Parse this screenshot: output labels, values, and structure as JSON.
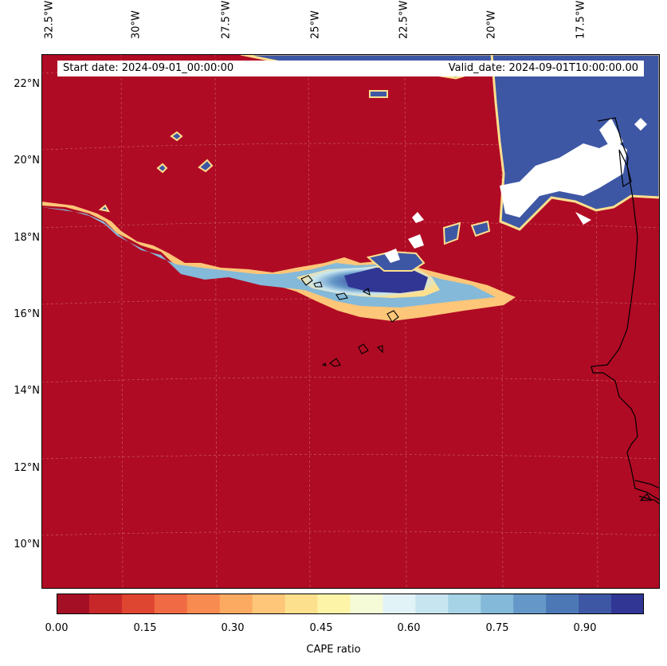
{
  "map": {
    "lon_labels": [
      "32.5°W",
      "30°W",
      "27.5°W",
      "25°W",
      "22.5°W",
      "20°W",
      "17.5°W"
    ],
    "lat_labels": [
      "22°N",
      "20°N",
      "18°N",
      "16°N",
      "14°N",
      "12°N",
      "10°N"
    ],
    "start_date": "Start date: 2024-09-01_00:00:00",
    "valid_date": "Valid_date: 2024-09-01T10:00:00.00",
    "field_name": "CAPE ratio",
    "background_color": "#b00b24",
    "coastline_color": "#000000"
  },
  "colorbar": {
    "label": "CAPE ratio",
    "ticks": [
      "0.00",
      "0.15",
      "0.30",
      "0.45",
      "0.60",
      "0.75",
      "0.90"
    ],
    "colors": [
      "#a50f26",
      "#c8272a",
      "#df4632",
      "#f06a44",
      "#f88b50",
      "#fcaa62",
      "#fdc678",
      "#fde08e",
      "#fef4a8",
      "#f5fbd6",
      "#e1f3f6",
      "#c7e5f0",
      "#a6d3e6",
      "#84b9d9",
      "#6598c8",
      "#4d78b6",
      "#3e57a5",
      "#313695"
    ]
  }
}
